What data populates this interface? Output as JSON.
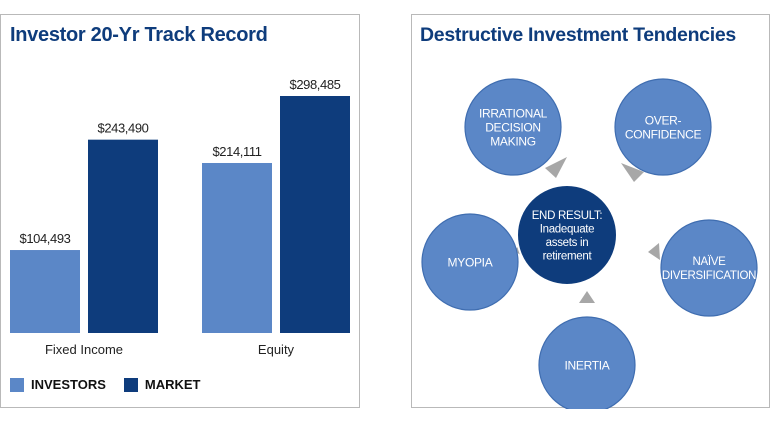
{
  "chart_data": [
    {
      "type": "bar",
      "title": "Investor 20-Yr Track Record",
      "categories": [
        "Fixed Income",
        "Equity"
      ],
      "series": [
        {
          "name": "INVESTORS",
          "values": [
            104493,
            214111
          ],
          "labels": [
            "$104,493",
            "$214,111"
          ],
          "color": "#5b87c7"
        },
        {
          "name": "MARKET",
          "values": [
            243490,
            298485
          ],
          "labels": [
            "$243,490",
            "$298,485"
          ],
          "color": "#0e3c7c"
        }
      ],
      "ylim": [
        0,
        298485
      ],
      "grid": false,
      "legend_position": "bottom-left"
    }
  ],
  "diagram": {
    "title": "Destructive Investment Tendencies",
    "center_lines": [
      "END RESULT:",
      "Inadequate",
      "assets in",
      "retirement"
    ],
    "nodes": [
      {
        "id": "irrational",
        "lines": [
          "IRRATIONAL",
          "DECISION",
          "MAKING"
        ]
      },
      {
        "id": "overconfidence",
        "lines": [
          "OVER-",
          "CONFIDENCE"
        ]
      },
      {
        "id": "myopia",
        "lines": [
          "MYOPIA"
        ]
      },
      {
        "id": "naive",
        "lines": [
          "NAÏVE",
          "DIVERSIFICATION"
        ]
      },
      {
        "id": "inertia",
        "lines": [
          "INERTIA"
        ]
      }
    ],
    "colors": {
      "outer": "#5b87c7",
      "center": "#0e3c7c",
      "outer_stroke": "#3f6db0",
      "arrow": "#a7a7a7"
    }
  }
}
